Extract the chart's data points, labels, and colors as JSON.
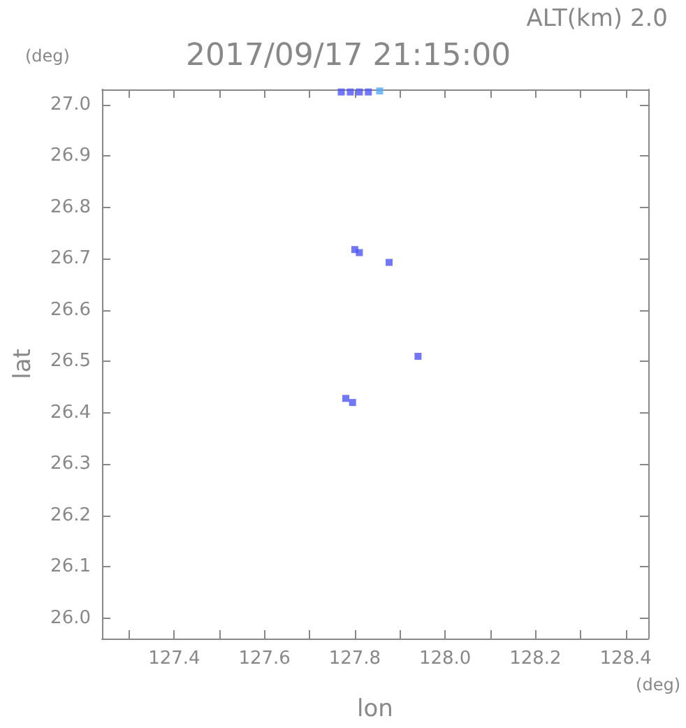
{
  "chart_data": {
    "type": "scatter",
    "title": "2017/09/17 21:15:00",
    "subtitle": "ALT(km) 2.0",
    "xlabel": "lon",
    "ylabel": "lat",
    "annotations": [
      "(deg)",
      "(deg)"
    ],
    "xlim": [
      127.24,
      128.45
    ],
    "ylim": [
      25.96,
      27.03
    ],
    "xticks": [
      {
        "value": 127.3,
        "label": null
      },
      127.4,
      {
        "value": 127.5,
        "label": null
      },
      127.6,
      {
        "value": 127.7,
        "label": null
      },
      127.8,
      {
        "value": 127.9,
        "label": null
      },
      {
        "value": 128,
        "label": "128.0"
      },
      {
        "value": 128.1,
        "label": null
      },
      128.2,
      {
        "value": 128.3,
        "label": null
      },
      128.4
    ],
    "yticks": [
      {
        "value": 26,
        "label": "26.0"
      },
      26.1,
      26.2,
      26.3,
      26.4,
      26.5,
      26.6,
      26.7,
      26.8,
      26.9,
      {
        "value": 27,
        "label": "27.0"
      }
    ],
    "marker": "square",
    "grid": false,
    "series": [
      {
        "color": "#4d55f5",
        "x": [
          127.77,
          127.79,
          127.81,
          127.83,
          127.8,
          127.81,
          127.876,
          127.94,
          127.78,
          127.795
        ],
        "values": [
          27.025,
          27.025,
          27.025,
          27.025,
          26.718,
          26.712,
          26.693,
          26.51,
          26.428,
          26.42
        ]
      },
      {
        "color": "#55aaff",
        "x": [
          127.855
        ],
        "values": [
          27.027
        ]
      }
    ]
  }
}
